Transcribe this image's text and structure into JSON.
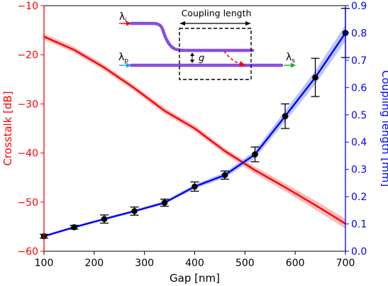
{
  "chart_data": {
    "type": "line",
    "xlabel": "Gap [nm]",
    "xlim": [
      100,
      700
    ],
    "x_ticks": [
      "100",
      "200",
      "300",
      "400",
      "500",
      "600",
      "700"
    ],
    "left_axis": {
      "label": "Crosstalk [dB]",
      "color": "#ff0000",
      "ylim": [
        -60,
        -10
      ],
      "ticks": [
        "−60",
        "−50",
        "−40",
        "−30",
        "−20",
        "−10"
      ]
    },
    "right_axis": {
      "label": "Coupling length [mm]",
      "color": "#0000ff",
      "ylim": [
        0.0,
        0.9
      ],
      "ticks": [
        "0.0",
        "0.1",
        "0.2",
        "0.3",
        "0.4",
        "0.5",
        "0.6",
        "0.7",
        "0.8",
        "0.9"
      ]
    },
    "series": [
      {
        "axis": "left",
        "color": "#ff0000",
        "band_color": "#f4a5a5",
        "x": [
          100,
          160,
          220,
          280,
          340,
          400,
          460,
          520,
          580,
          640,
          700
        ],
        "y": [
          -16.3,
          -19.0,
          -22.6,
          -26.8,
          -31.4,
          -35.0,
          -39.6,
          -43.5,
          -47.0,
          -50.6,
          -54.4
        ],
        "band": [
          0.6,
          0.6,
          0.6,
          0.6,
          0.6,
          0.6,
          0.6,
          0.7,
          0.8,
          0.9,
          1.0
        ]
      },
      {
        "axis": "right",
        "color": "#0000ff",
        "band_color": "#a7b4f0",
        "x": [
          100,
          160,
          220,
          280,
          340,
          400,
          460,
          520,
          580,
          640,
          700
        ],
        "y": [
          0.055,
          0.088,
          0.118,
          0.147,
          0.178,
          0.237,
          0.279,
          0.355,
          0.495,
          0.637,
          0.8
        ],
        "yerr": [
          0.007,
          0.007,
          0.015,
          0.015,
          0.013,
          0.017,
          0.015,
          0.027,
          0.045,
          0.07,
          0.09
        ],
        "band": [
          0.004,
          0.004,
          0.005,
          0.005,
          0.006,
          0.008,
          0.01,
          0.014,
          0.02,
          0.025,
          0.03
        ]
      }
    ],
    "inset": {
      "idler_label": "λ",
      "idler_sub": "i",
      "pump_label": "λ",
      "pump_sub": "p",
      "signal_label": "λ",
      "signal_sub": "s",
      "gap_label": "g",
      "box_label": "Coupling length"
    }
  }
}
